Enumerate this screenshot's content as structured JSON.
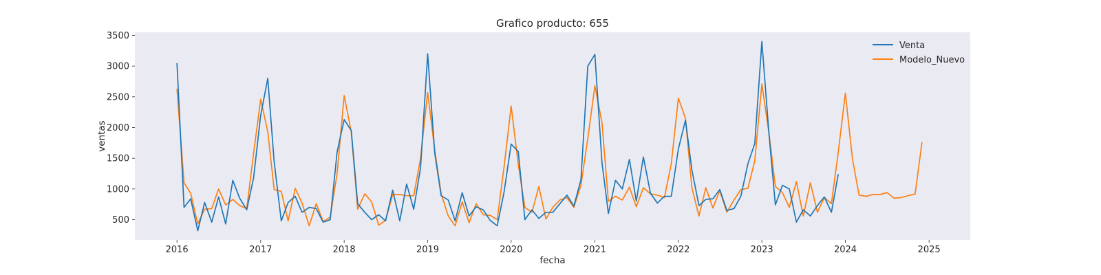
{
  "chart_data": {
    "type": "line",
    "title": "Grafico producto: 655",
    "xlabel": "fecha",
    "ylabel": "ventas",
    "xlim": [
      "2015-07-01",
      "2025-06-30"
    ],
    "ylim": [
      170,
      3550
    ],
    "x_ticks": [
      "2016",
      "2017",
      "2018",
      "2019",
      "2020",
      "2021",
      "2022",
      "2023",
      "2024",
      "2025"
    ],
    "y_ticks": [
      500,
      1000,
      1500,
      2000,
      2500,
      3000,
      3500
    ],
    "grid": false,
    "background": "#eaeaf2",
    "legend_position": "top-right",
    "series": [
      {
        "name": "Venta",
        "color": "#1f77b4",
        "start": "2016-01",
        "frequency": "monthly",
        "values": [
          3050,
          700,
          840,
          320,
          780,
          460,
          870,
          430,
          1140,
          850,
          660,
          1180,
          2200,
          2800,
          1440,
          480,
          780,
          880,
          620,
          700,
          680,
          460,
          500,
          1600,
          2130,
          1950,
          760,
          620,
          500,
          580,
          480,
          980,
          480,
          1080,
          670,
          1350,
          3200,
          1580,
          890,
          820,
          480,
          940,
          560,
          710,
          660,
          490,
          400,
          950,
          1730,
          1610,
          500,
          660,
          520,
          620,
          620,
          760,
          900,
          720,
          1150,
          3000,
          3190,
          1430,
          600,
          1140,
          1000,
          1480,
          800,
          1520,
          930,
          770,
          880,
          880,
          1650,
          2120,
          1310,
          730,
          830,
          840,
          990,
          650,
          680,
          880,
          1410,
          1740,
          3400,
          1900,
          740,
          1060,
          1000,
          460,
          660,
          560,
          730,
          870,
          620,
          1240
        ]
      },
      {
        "name": "Modelo_Nuevo",
        "color": "#ff7f0e",
        "start": "2016-01",
        "frequency": "monthly",
        "values": [
          2630,
          1100,
          930,
          430,
          670,
          680,
          1000,
          740,
          830,
          730,
          680,
          1580,
          2460,
          1930,
          990,
          960,
          480,
          1010,
          770,
          400,
          760,
          470,
          540,
          1250,
          2520,
          1930,
          670,
          920,
          790,
          410,
          490,
          910,
          910,
          890,
          890,
          1500,
          2570,
          1630,
          920,
          560,
          400,
          790,
          450,
          760,
          580,
          570,
          500,
          1360,
          2350,
          1400,
          700,
          620,
          1040,
          510,
          700,
          820,
          860,
          700,
          1060,
          1820,
          2680,
          2080,
          800,
          880,
          820,
          1030,
          710,
          1020,
          920,
          900,
          860,
          1410,
          2480,
          2150,
          1020,
          560,
          1020,
          690,
          970,
          620,
          820,
          990,
          1010,
          1460,
          2710,
          1910,
          1040,
          940,
          700,
          1120,
          560,
          1100,
          620,
          860,
          760,
          1600,
          2560,
          1490,
          900,
          880,
          910,
          910,
          940,
          850,
          860,
          890,
          920,
          1760
        ]
      }
    ]
  }
}
